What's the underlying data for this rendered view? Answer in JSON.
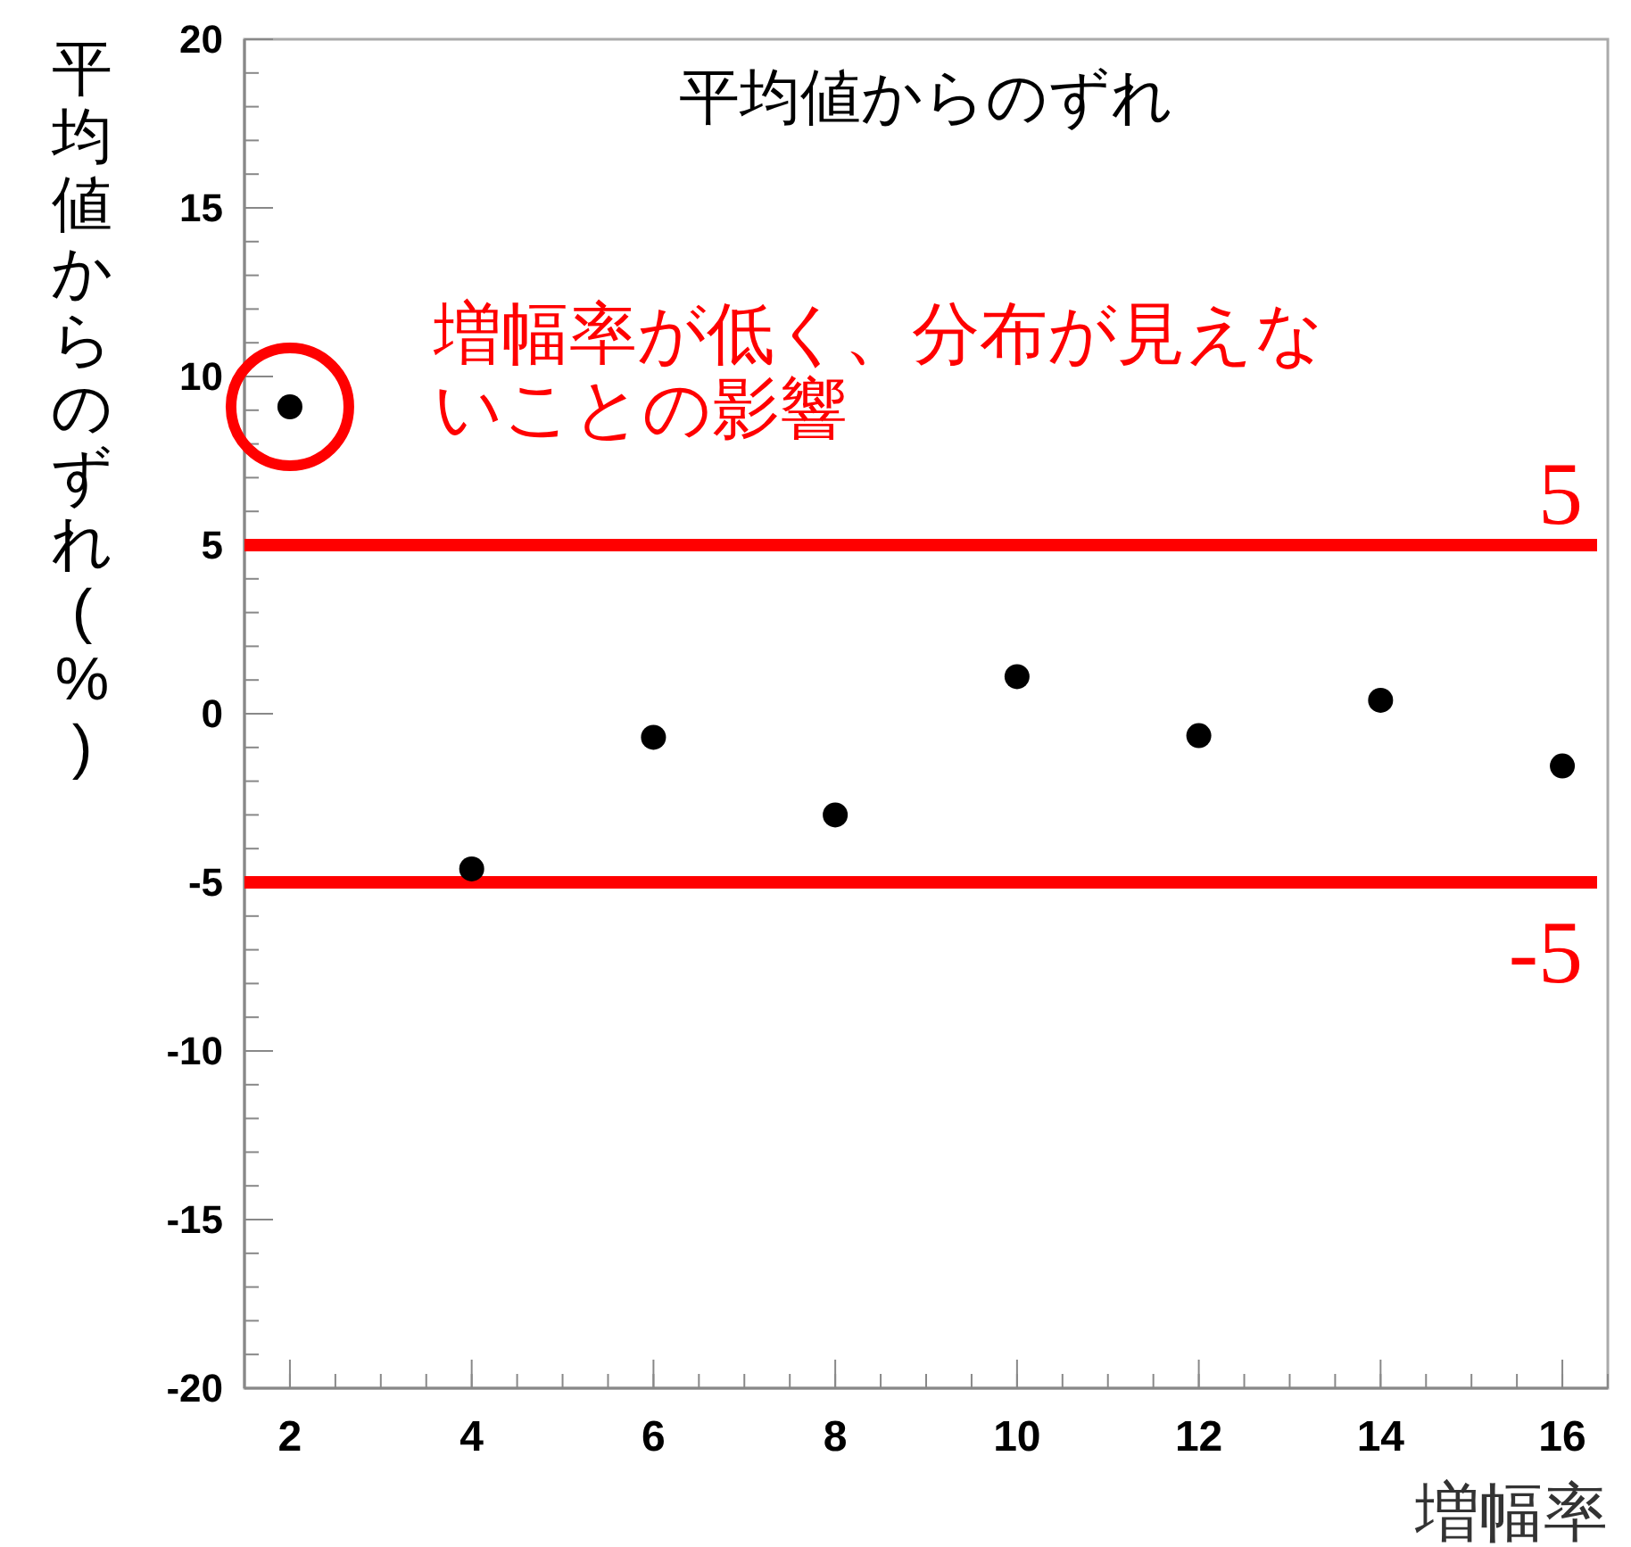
{
  "chart_data": {
    "type": "scatter",
    "title": "平均値からのずれ",
    "xlabel": "増幅率",
    "ylabel": "平均値からのずれ(%)",
    "x": [
      2,
      4,
      6,
      8,
      10,
      12,
      14,
      16
    ],
    "series": [
      {
        "color": "#000000",
        "values": [
          9.1,
          -4.6,
          -0.7,
          -3.0,
          1.1,
          -0.65,
          0.4,
          -1.55
        ]
      }
    ],
    "xlim": [
      1.5,
      16.5
    ],
    "xticks": [
      2,
      4,
      6,
      8,
      10,
      12,
      14,
      16
    ],
    "ylim": [
      -20,
      20
    ],
    "yticks": [
      -20,
      -15,
      -10,
      -5,
      0,
      5,
      10,
      15,
      20
    ],
    "marker": "circle",
    "ref_lines": [
      {
        "axis": "y",
        "value": 5,
        "label": "5",
        "color": "#ff0000"
      },
      {
        "axis": "y",
        "value": -5,
        "label": "-5",
        "color": "#ff0000"
      }
    ],
    "annotations": [
      {
        "text": "増幅率が低く、分布が見えないことの影響",
        "x": 2,
        "y": 9.1
      }
    ]
  }
}
